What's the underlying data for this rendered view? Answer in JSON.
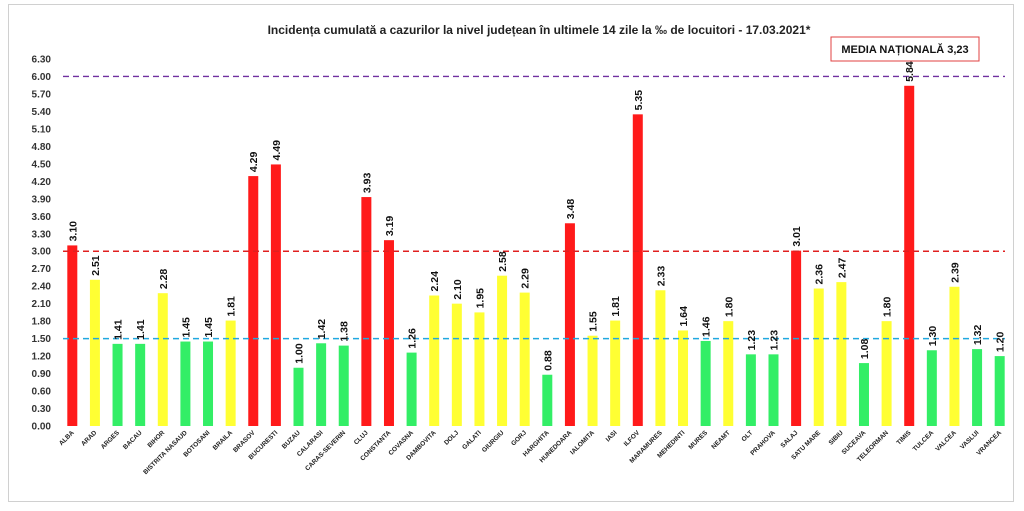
{
  "chart_data": {
    "type": "bar",
    "title": "Incidența cumulată a cazurilor la nivel județean în ultimele 14 zile   la ‰ de locuitori  - 17.03.2021*",
    "annotation": "MEDIA NAȚIONALĂ 3,23",
    "ylim": [
      0,
      6.3
    ],
    "yticks": [
      "0.00",
      "0.30",
      "0.60",
      "0.90",
      "1.20",
      "1.50",
      "1.80",
      "2.10",
      "2.40",
      "2.70",
      "3.00",
      "3.30",
      "3.60",
      "3.90",
      "4.20",
      "4.50",
      "4.80",
      "5.10",
      "5.40",
      "5.70",
      "6.00",
      "6.30"
    ],
    "grid": false,
    "reference_lines": [
      {
        "value": 6.0,
        "color": "#7030a0"
      },
      {
        "value": 3.0,
        "color": "#e02020"
      },
      {
        "value": 1.5,
        "color": "#20a8e0"
      }
    ],
    "categories": [
      "ALBA",
      "ARAD",
      "ARGES",
      "BACAU",
      "BIHOR",
      "BISTRITA NASAUD",
      "BOTOSANI",
      "BRAILA",
      "BRASOV",
      "BUCURESTI",
      "BUZAU",
      "CALARASI",
      "CARAS-SEVERIN",
      "CLUJ",
      "CONSTANTA",
      "COVASNA",
      "DAMBOVITA",
      "DOLJ",
      "GALATI",
      "GIURGIU",
      "GORJ",
      "HARGHITA",
      "HUNEDOARA",
      "IALOMITA",
      "IASI",
      "ILFOV",
      "MARAMURES",
      "MEHEDINTI",
      "MURES",
      "NEAMT",
      "OLT",
      "PRAHOVA",
      "SALAJ",
      "SATU MARE",
      "SIBIU",
      "SUCEAVA",
      "TELEORMAN",
      "TIMIS",
      "TULCEA",
      "VALCEA",
      "VASLUI",
      "VRANCEA"
    ],
    "values": [
      3.1,
      2.51,
      1.41,
      1.41,
      2.28,
      1.45,
      1.45,
      1.81,
      4.29,
      4.49,
      1.0,
      1.42,
      1.38,
      3.93,
      3.19,
      1.26,
      2.24,
      2.1,
      1.95,
      2.58,
      2.29,
      0.88,
      3.48,
      1.55,
      1.81,
      5.35,
      2.33,
      1.64,
      1.46,
      1.8,
      1.23,
      1.23,
      3.01,
      2.36,
      2.47,
      1.08,
      1.8,
      5.84,
      1.3,
      2.39,
      1.32,
      1.2
    ],
    "value_labels": [
      "3.10",
      "2.51",
      "1.41",
      "1.41",
      "2.28",
      "1.45",
      "1.45",
      "1.81",
      "4.29",
      "4.49",
      "1.00",
      "1.42",
      "1.38",
      "3.93",
      "3.19",
      "1.26",
      "2.24",
      "2.10",
      "1.95",
      "2.58",
      "2.29",
      "0.88",
      "3.48",
      "1.55",
      "1.81",
      "5.35",
      "2.33",
      "1.64",
      "1.46",
      "1.80",
      "1.23",
      "1.23",
      "3.01",
      "2.36",
      "2.47",
      "1.08",
      "1.80",
      "5.84",
      "1.30",
      "2.39",
      "1.32",
      "1.20"
    ],
    "colors": {
      "high": "#ff1a1a",
      "medium": "#ffff33",
      "low": "#33ee66"
    },
    "thresholds": [
      1.5,
      3.0
    ]
  }
}
